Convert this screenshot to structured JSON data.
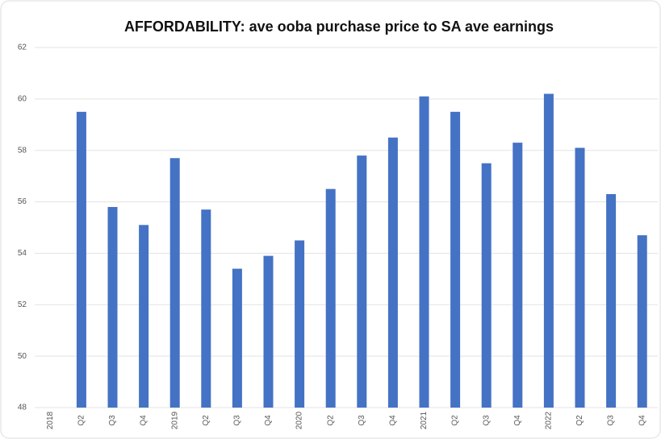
{
  "chart_data": {
    "type": "bar",
    "title": "AFFORDABILITY: ave ooba purchase price to SA ave earnings",
    "categories": [
      "2018",
      "Q2",
      "Q3",
      "Q4",
      "2019",
      "Q2",
      "Q3",
      "Q4",
      "2020",
      "Q2",
      "Q3",
      "Q4",
      "2021",
      "Q2",
      "Q3",
      "Q4",
      "2022",
      "Q2",
      "Q3",
      "Q4"
    ],
    "values": [
      null,
      59.5,
      55.8,
      55.1,
      57.7,
      55.7,
      53.4,
      53.9,
      54.5,
      56.5,
      57.8,
      58.5,
      60.1,
      59.5,
      57.5,
      58.3,
      60.2,
      58.1,
      56.3,
      54.7
    ],
    "color": "#4472c4",
    "ylim": [
      48,
      62
    ],
    "yticks": [
      48,
      50,
      52,
      54,
      56,
      58,
      60,
      62
    ],
    "grid": true
  }
}
